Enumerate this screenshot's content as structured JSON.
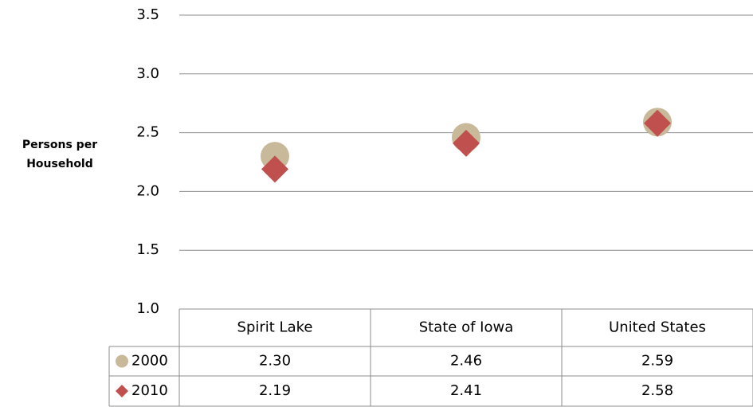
{
  "chart_data": {
    "type": "scatter",
    "y_label": "Persons per Household",
    "categories": [
      "Spirit Lake",
      "State of Iowa",
      "United States"
    ],
    "series": [
      {
        "name": "2000",
        "color": "#c9b99b",
        "marker": "circle",
        "values": [
          2.3,
          2.46,
          2.59
        ],
        "value_labels": [
          "2.30",
          "2.46",
          "2.59"
        ]
      },
      {
        "name": "2010",
        "color": "#c0504d",
        "marker": "diamond",
        "values": [
          2.19,
          2.41,
          2.58
        ],
        "value_labels": [
          "2.19",
          "2.41",
          "2.58"
        ]
      }
    ],
    "ylim": [
      1.0,
      3.5
    ],
    "yticks": [
      {
        "value": 1.0,
        "label": "1.0"
      },
      1.5,
      {
        "value": 2.0,
        "label": "2.0"
      },
      2.5,
      {
        "value": 3.0,
        "label": "3.0"
      },
      3.5
    ],
    "grid": true
  }
}
